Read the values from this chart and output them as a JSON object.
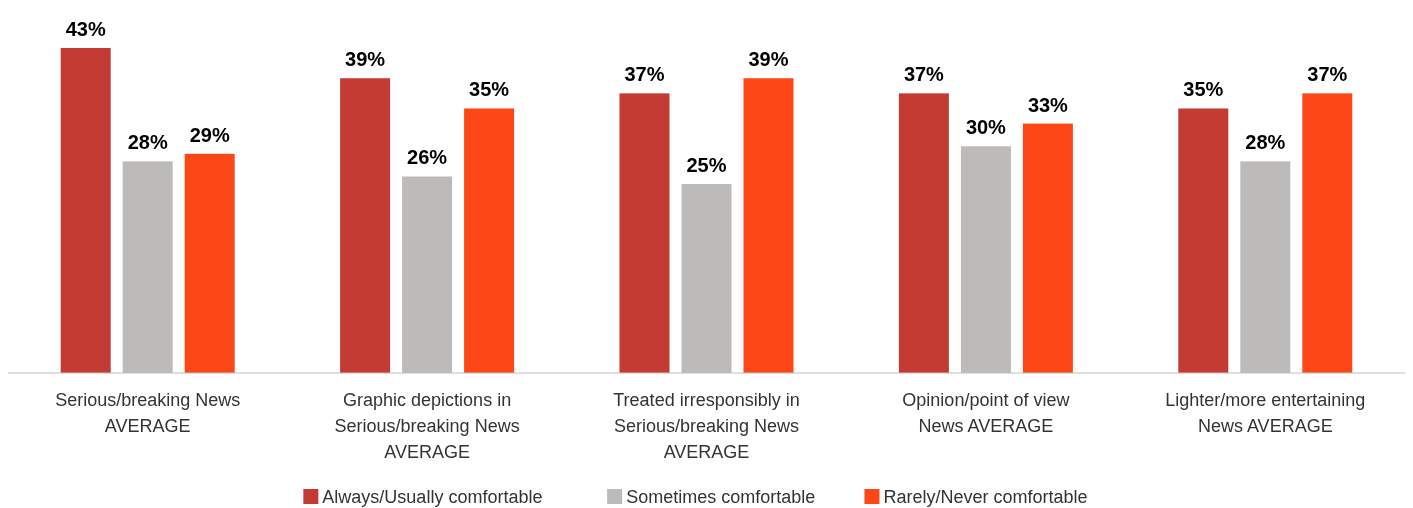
{
  "chart_data": {
    "type": "bar",
    "categories": [
      "Serious/breaking News AVERAGE",
      "Graphic depictions in Serious/breaking News AVERAGE",
      "Treated irresponsibly in Serious/breaking News AVERAGE",
      "Opinion/point of view News AVERAGE",
      "Lighter/more entertaining News AVERAGE"
    ],
    "series": [
      {
        "name": "Always/Usually comfortable",
        "color": "#c33b33",
        "values": [
          43,
          39,
          37,
          37,
          35
        ],
        "value_labels": [
          "43%",
          "39%",
          "37%",
          "37%",
          "35%"
        ]
      },
      {
        "name": "Sometimes comfortable",
        "color": "#bdbbb9",
        "values": [
          28,
          26,
          25,
          30,
          28
        ],
        "value_labels": [
          "28%",
          "26%",
          "25%",
          "30%",
          "28%"
        ]
      },
      {
        "name": "Rarely/Never comfortable",
        "color": "#fd4717",
        "values": [
          29,
          35,
          39,
          33,
          37
        ],
        "value_labels": [
          "29%",
          "35%",
          "39%",
          "33%",
          "37%"
        ]
      }
    ],
    "legend": "bottom"
  }
}
